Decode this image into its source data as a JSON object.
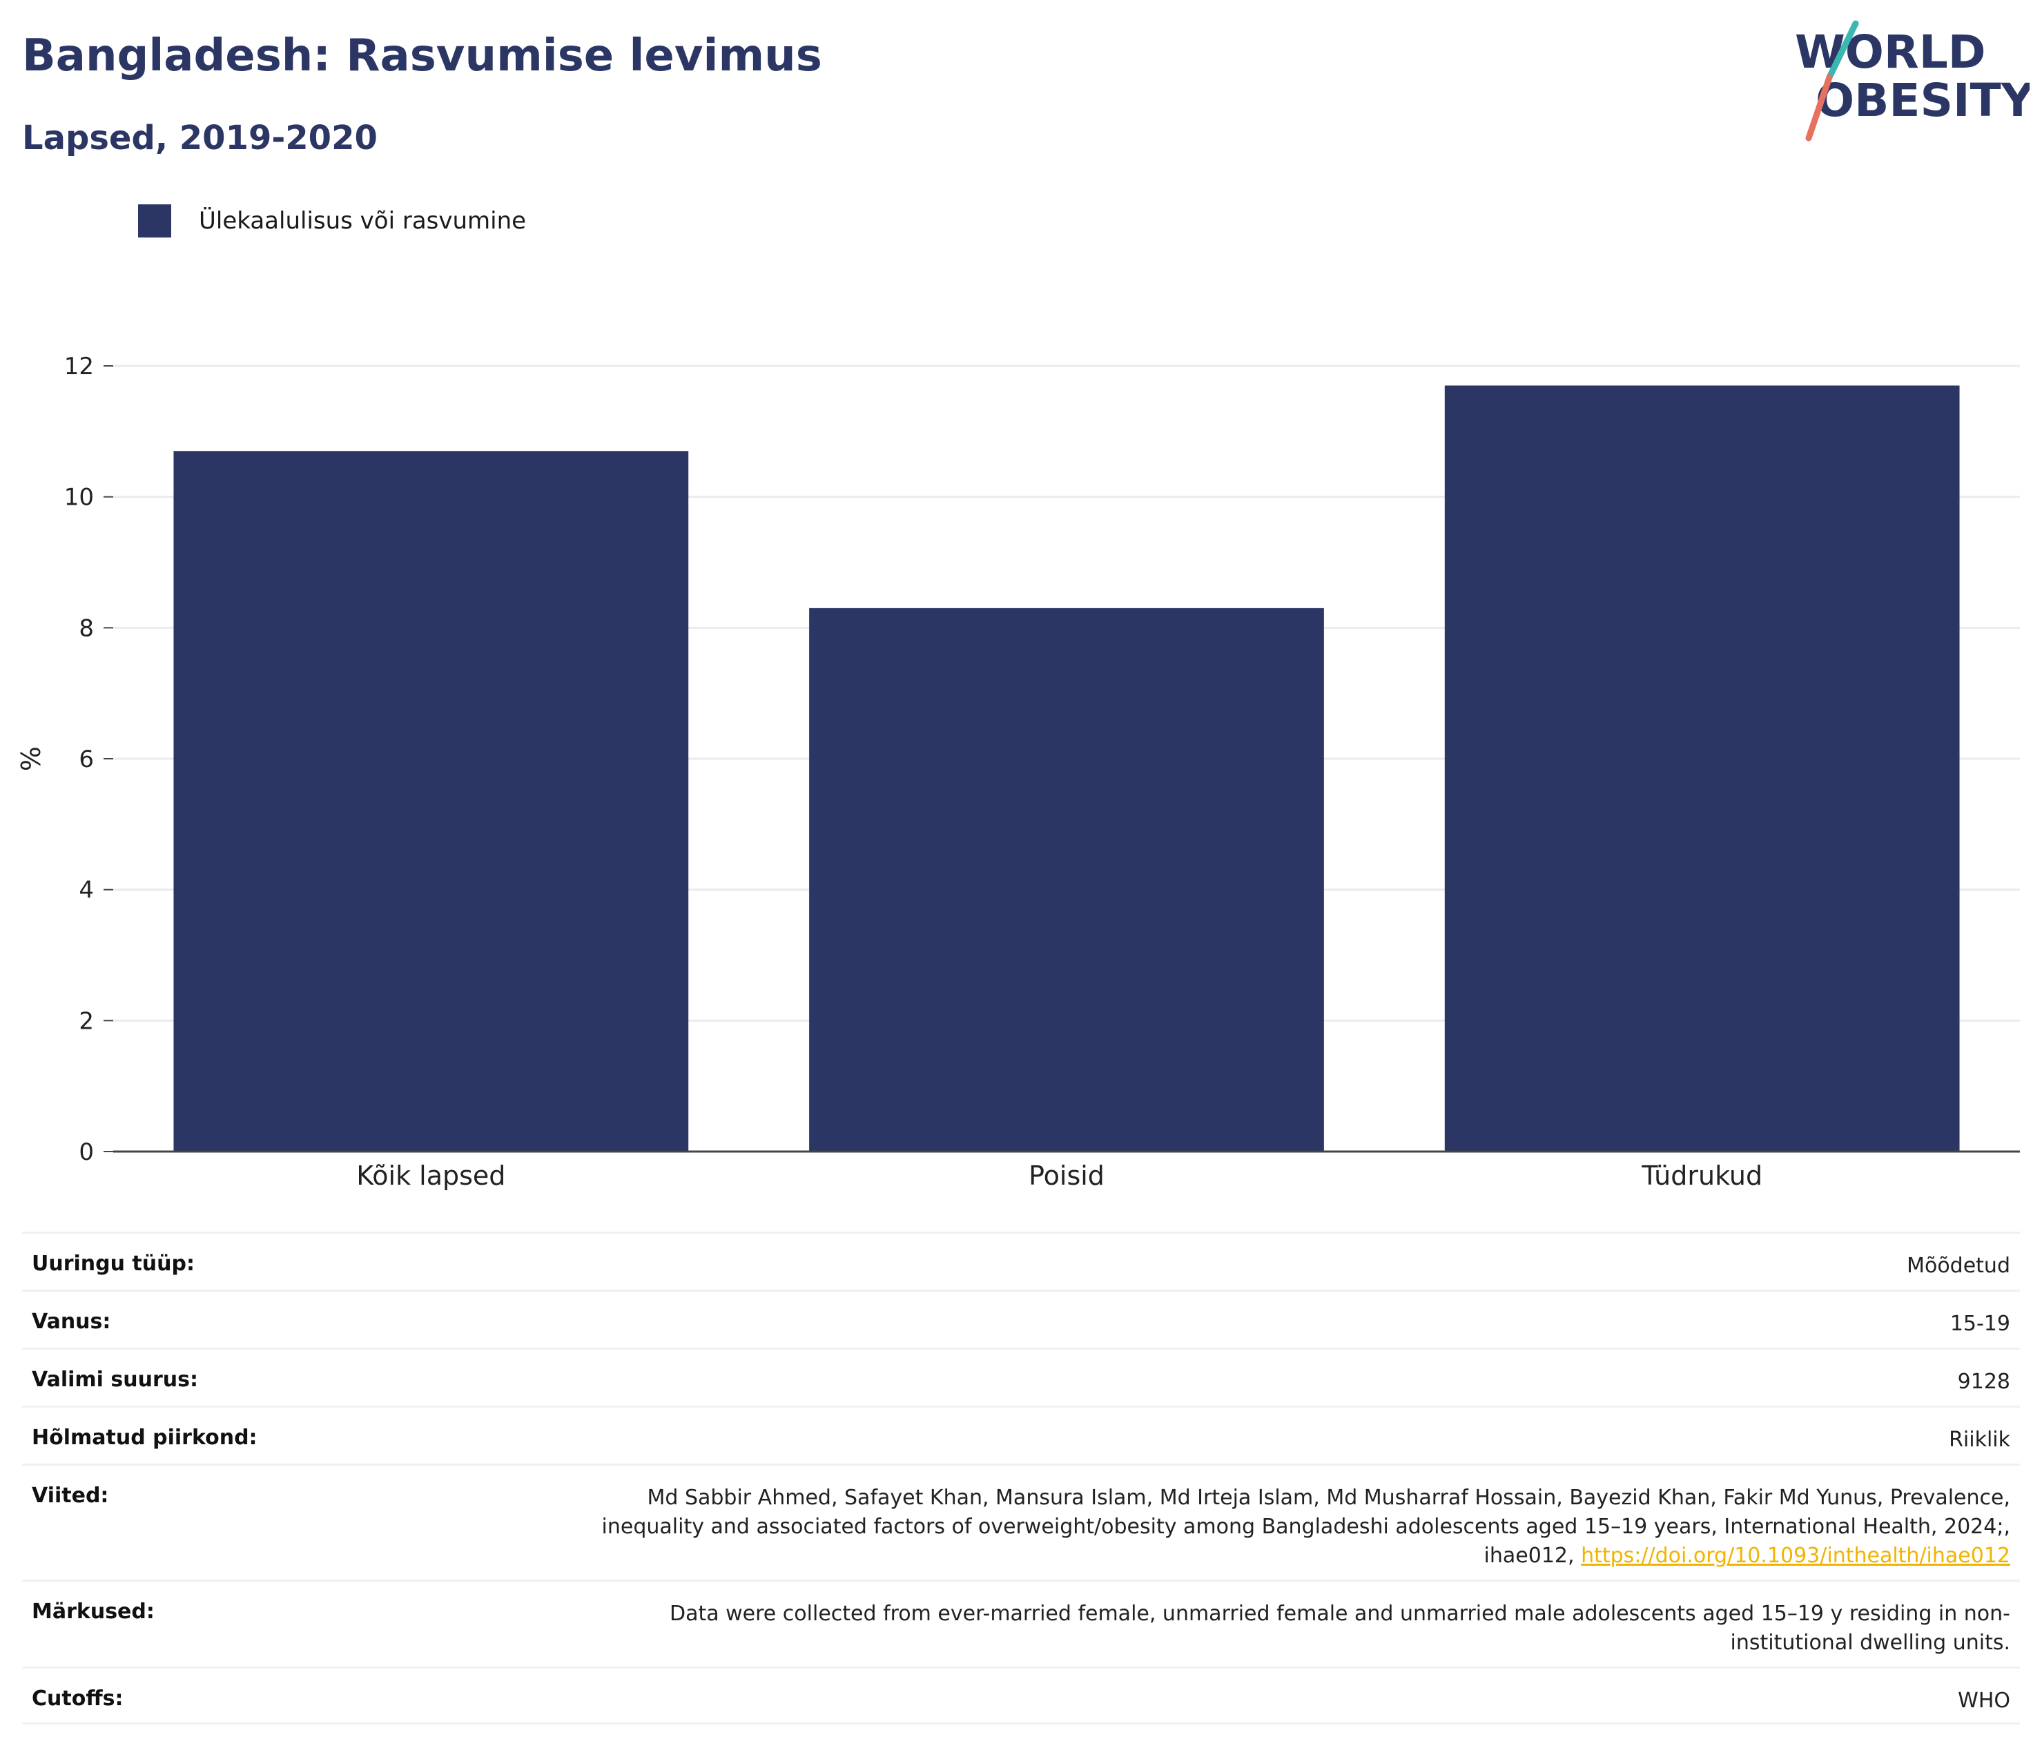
{
  "header": {
    "title": "Bangladesh: Rasvumise levimus",
    "subtitle": "Lapsed, 2019-2020"
  },
  "logo": {
    "line1": "WORLD",
    "line2": "OBESITY"
  },
  "colors": {
    "bar": "#2b3664",
    "title": "#2b3664",
    "link": "#f0b400",
    "logo_teal": "#3ab7b0",
    "logo_coral": "#e8705f"
  },
  "chart_data": {
    "type": "bar",
    "categories": [
      "Kõik lapsed",
      "Poisid",
      "Tüdrukud"
    ],
    "series": [
      {
        "name": "Ülekaalulisus või rasvumine",
        "values": [
          10.7,
          8.3,
          11.7
        ]
      }
    ],
    "ylabel": "%",
    "xlabel": "",
    "ylim": [
      0,
      12
    ],
    "yticks": [
      0,
      2,
      4,
      6,
      8,
      10,
      12
    ],
    "grid": true,
    "legend": "top-left"
  },
  "metadata": [
    {
      "key": "Uuringu tüüp:",
      "value": "Mõõdetud"
    },
    {
      "key": "Vanus:",
      "value": "15-19"
    },
    {
      "key": "Valimi suurus:",
      "value": "9128"
    },
    {
      "key": "Hõlmatud piirkond:",
      "value": "Riiklik"
    },
    {
      "key": "Viited:",
      "value_line1": "Md Sabbir Ahmed, Safayet Khan, Mansura Islam, Md Irteja Islam, Md Musharraf Hossain, Bayezid Khan, Fakir Md Yunus, Prevalence,",
      "value_line2": "inequality and associated factors of overweight/obesity among Bangladeshi adolescents aged 15–19 years, International Health, 2024;,",
      "value_line3_prefix": "ihae012, ",
      "link": "https://doi.org/10.1093/inthealth/ihae012"
    },
    {
      "key": "Märkused:",
      "value_line1": "Data were collected from ever-married female, unmarried female and unmarried male adolescents aged 15–19 y residing in non-",
      "value_line2": "institutional dwelling units."
    },
    {
      "key": "Cutoffs:",
      "value": "WHO"
    }
  ]
}
